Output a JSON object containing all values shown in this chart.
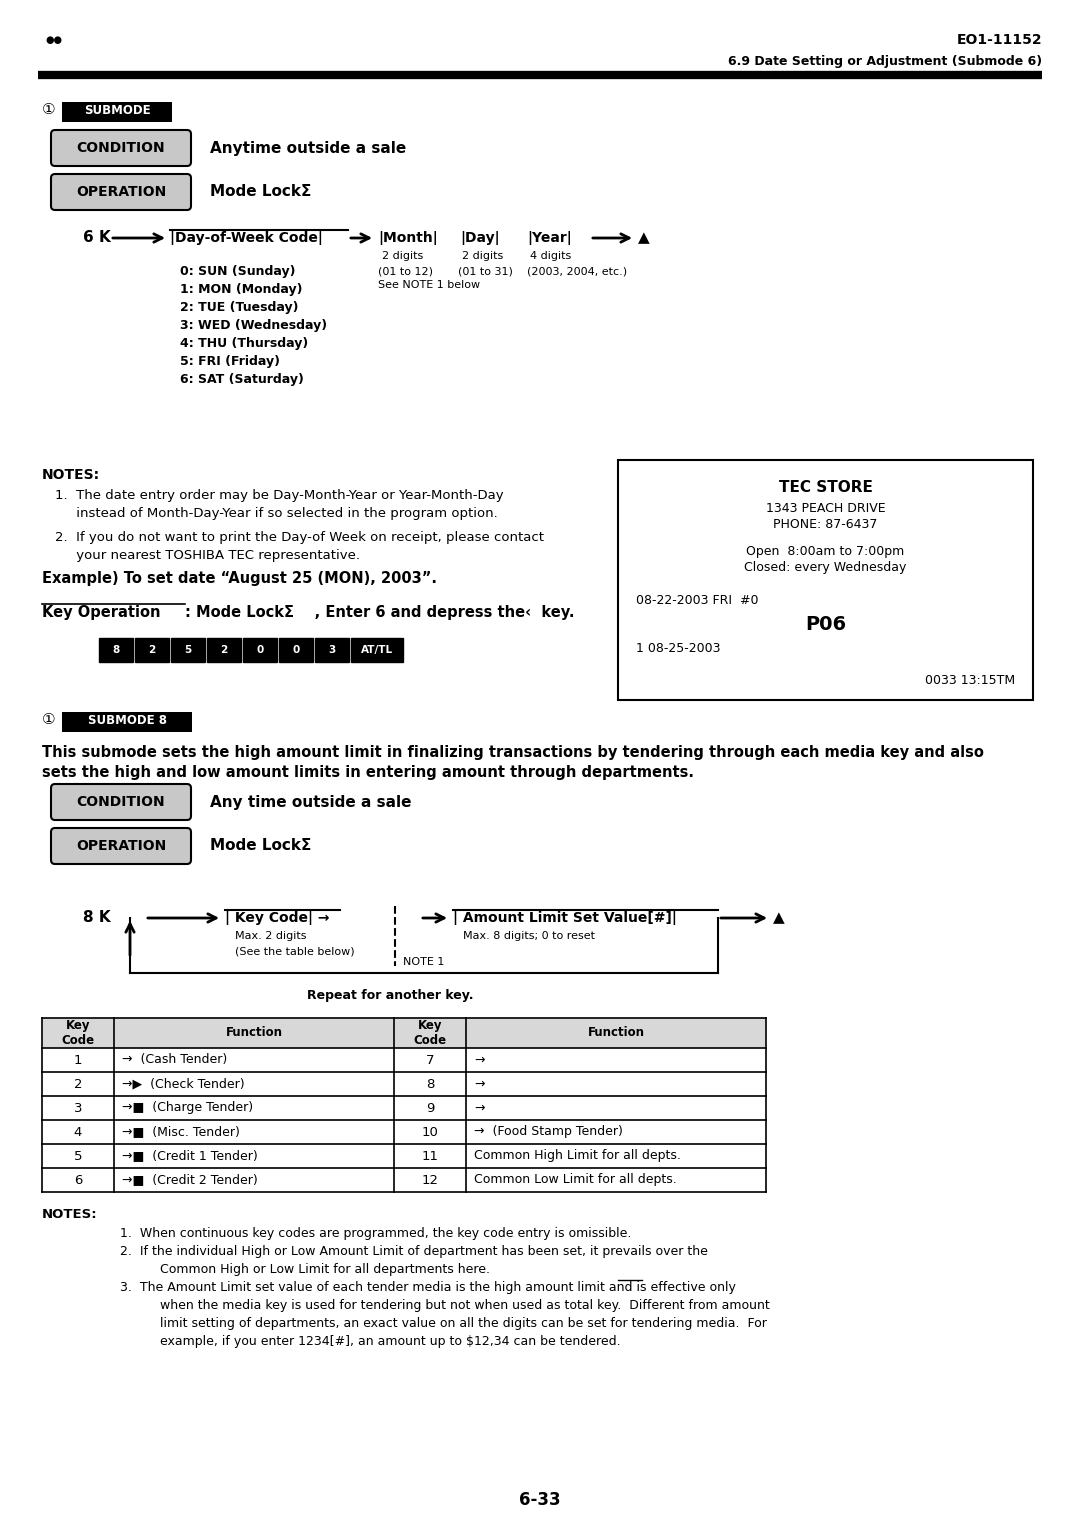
{
  "page_header_right": "EO1-11152",
  "page_subheader_right": "6.9 Date Setting or Adjustment (Submode 6)",
  "condition_label": "CONDITION",
  "operation_label": "OPERATION",
  "condition_text": "Anytime outside a sale",
  "operation_text": "Mode LockΣ",
  "dow_codes": [
    "0: SUN (Sunday)",
    "1: MON (Monday)",
    "2: TUE (Tuesday)",
    "3: WED (Wednesday)",
    "4: THU (Thursday)",
    "5: FRI (Friday)",
    "6: SAT (Saturday)"
  ],
  "note1_line1": "1.  The date entry order may be Day-Month-Year or Year-Month‑Day",
  "note1_line2": "     instead of Month-Day-Year if so selected in the program option.",
  "note2_line1": "2.  If you do not want to print the Day-of Week on receipt, please contact",
  "note2_line2": "     your nearest TOSHIBA TEC representative.",
  "example_text": "Example) To set date “August 25 (MON), 2003”.",
  "keyop_prefix": "Key Operation",
  "keyop_suffix": ": Mode LockΣ    , Enter 6 and depress the‹  key.",
  "receipt_store": "TEC STORE",
  "receipt_addr": "1343 PEACH DRIVE",
  "receipt_phone": "PHONE: 87-6437",
  "receipt_hours": "Open  8:00am to 7:00pm",
  "receipt_closed": "Closed: every Wednesday",
  "receipt_date1": "08-22-2003 FRI  #0",
  "receipt_p06": "P06",
  "receipt_date2": "1 08-25-2003",
  "receipt_footer": "0033 13:15TM",
  "s2_desc1": "This submode sets the high amount limit in finalizing transactions by tendering through each media key and also",
  "s2_desc2": "sets the high and low amount limits in entering amount through departments.",
  "condition2_text": "Any time outside a sale",
  "operation2_text": "Mode LockΣ",
  "flow2_repeat": "Repeat for another key.",
  "tbl_rows": [
    [
      "1",
      "(Cash Tender)",
      "7",
      ""
    ],
    [
      "2",
      "(Check Tender)",
      "8",
      ""
    ],
    [
      "3",
      "(Charge Tender)",
      "9",
      ""
    ],
    [
      "4",
      "(Misc. Tender)",
      "10",
      "(Food Stamp Tender)"
    ],
    [
      "5",
      "(Credit 1 Tender)",
      "11",
      "Common High Limit for all depts."
    ],
    [
      "6",
      "(Credit 2 Tender)",
      "12",
      "Common Low Limit for all depts."
    ]
  ],
  "n2_1": "1.  When continuous key codes are programmed, the key code entry is omissible.",
  "n2_2a": "2.  If the individual High or Low Amount Limit of department has been set, it prevails over the",
  "n2_2b": "     Common High or Low Limit for all departments here.",
  "n2_3a": "3.  The Amount Limit set value of each tender media is the high amount limit and is effective only",
  "n2_3b": "     when the media key is used for tendering but not when used as total key.  Different from amount",
  "n2_3c": "     limit setting of departments, an exact value on all the digits can be set for tendering media.  For",
  "n2_3d": "     example, if you enter 1234[#], an amount up to $12,34 can be tendered.",
  "page_footer": "6-33"
}
